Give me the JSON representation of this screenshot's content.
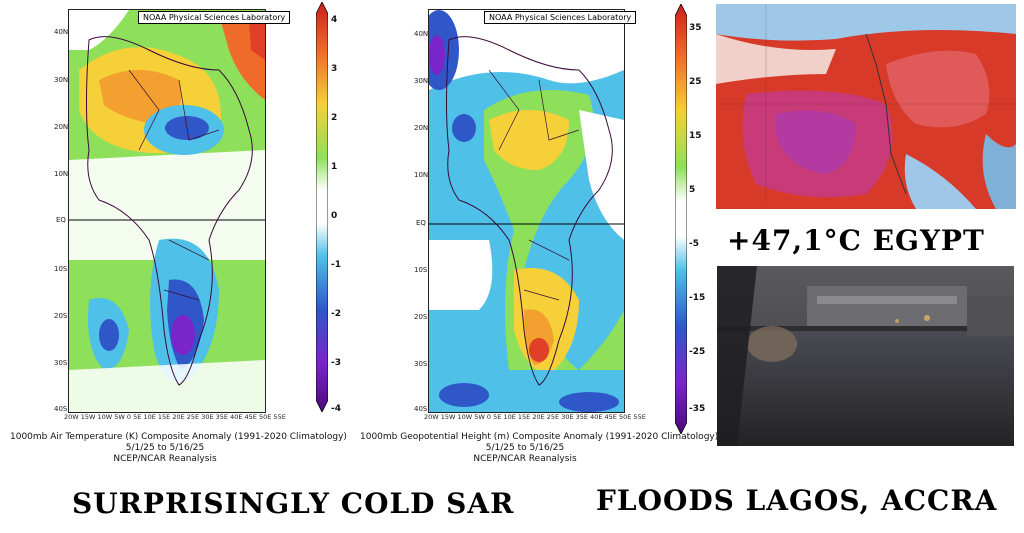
{
  "left_map": {
    "credit": "NOAA Physical Sciences Laboratory",
    "lat_labels": [
      "40N",
      "30N",
      "20N",
      "10N",
      "EQ",
      "10S",
      "20S",
      "30S",
      "40S"
    ],
    "lon_labels": "20W 15W 10W 5W  0  5E 10E 15E 20E 25E 30E 35E 40E 45E 50E 55E",
    "caption_line1": "1000mb Air Temperature (K) Composite Anomaly (1991-2020 Climatology)",
    "caption_line2": "5/1/25 to 5/16/25",
    "caption_line3": "NCEP/NCAR Reanalysis",
    "colorbar_ticks": [
      "4",
      "3",
      "2",
      "1",
      "0",
      "-1",
      "-2",
      "-3",
      "-4"
    ]
  },
  "right_map": {
    "credit": "NOAA Physical Sciences Laboratory",
    "lat_labels": [
      "40N",
      "30N",
      "20N",
      "10N",
      "EQ",
      "10S",
      "20S",
      "30S",
      "40S"
    ],
    "lon_labels": "20W 15W 10W 5W  0  5E 10E 15E 20E 25E 30E 35E 40E 45E 50E 55E",
    "caption_line1": "1000mb Geopotential Height (m) Composite Anomaly (1991-2020 Climatology)",
    "caption_line2": "5/1/25 to 5/16/25",
    "caption_line3": "NCEP/NCAR Reanalysis",
    "colorbar_ticks": [
      "35",
      "25",
      "15",
      "5",
      "-5",
      "-15",
      "-25",
      "-35"
    ]
  },
  "egypt_label": "+47,1°C EGYPT",
  "bottom_left_headline": "SURPRISINGLY COLD SAR",
  "bottom_right_headline": "FLOODS LAGOS, ACCRA",
  "colors": {
    "hot": "#d62d20",
    "cold": "#3355cc",
    "neutral": "#ffffff",
    "green": "#7ed957",
    "yellow": "#f2d024"
  }
}
